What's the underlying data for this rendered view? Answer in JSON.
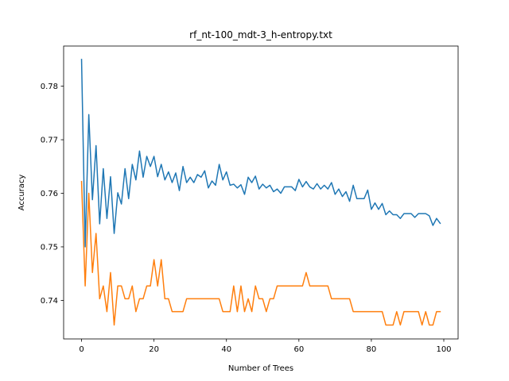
{
  "chart_data": {
    "type": "line",
    "title": "rf_nt-100_mdt-3_h-entropy.txt",
    "xlabel": "Number of Trees",
    "ylabel": "Accuracy",
    "xlim": [
      -4.95,
      103.95
    ],
    "ylim": [
      0.7328,
      0.7875
    ],
    "xticks": [
      0,
      20,
      40,
      60,
      80,
      100
    ],
    "yticks": [
      0.74,
      0.75,
      0.76,
      0.77,
      0.78
    ],
    "ytick_labels": [
      "0.74",
      "0.75",
      "0.76",
      "0.77",
      "0.78"
    ],
    "grid": false,
    "series": [
      {
        "color": "#1f77b4",
        "x": [
          0,
          1,
          2,
          3,
          4,
          5,
          6,
          7,
          8,
          9,
          10,
          11,
          12,
          13,
          14,
          15,
          16,
          17,
          18,
          19,
          20,
          21,
          22,
          23,
          24,
          25,
          26,
          27,
          28,
          29,
          30,
          31,
          32,
          33,
          34,
          35,
          36,
          37,
          38,
          39,
          40,
          41,
          42,
          43,
          44,
          45,
          46,
          47,
          48,
          49,
          50,
          51,
          52,
          53,
          54,
          55,
          56,
          57,
          58,
          59,
          60,
          61,
          62,
          63,
          64,
          65,
          66,
          67,
          68,
          69,
          70,
          71,
          72,
          73,
          74,
          75,
          76,
          77,
          78,
          79,
          80,
          81,
          82,
          83,
          84,
          85,
          86,
          87,
          88,
          89,
          90,
          91,
          92,
          93,
          94,
          95,
          96,
          97,
          98,
          99
        ],
        "values": [
          0.785,
          0.75,
          0.7747,
          0.7588,
          0.7689,
          0.7543,
          0.7646,
          0.7553,
          0.7631,
          0.7525,
          0.7601,
          0.758,
          0.7646,
          0.759,
          0.7654,
          0.7625,
          0.7679,
          0.763,
          0.7669,
          0.765,
          0.7669,
          0.7631,
          0.7654,
          0.7625,
          0.764,
          0.762,
          0.7638,
          0.7605,
          0.765,
          0.762,
          0.763,
          0.762,
          0.7635,
          0.763,
          0.7642,
          0.761,
          0.7623,
          0.7615,
          0.7654,
          0.7625,
          0.764,
          0.7615,
          0.7617,
          0.761,
          0.7616,
          0.7598,
          0.763,
          0.762,
          0.7632,
          0.7608,
          0.7617,
          0.761,
          0.7615,
          0.7603,
          0.7608,
          0.76,
          0.7612,
          0.7612,
          0.7612,
          0.7605,
          0.7626,
          0.7612,
          0.7622,
          0.7612,
          0.7608,
          0.7618,
          0.7608,
          0.7615,
          0.7608,
          0.762,
          0.7598,
          0.7608,
          0.7594,
          0.7603,
          0.7585,
          0.7615,
          0.759,
          0.759,
          0.759,
          0.7606,
          0.757,
          0.7582,
          0.757,
          0.7581,
          0.756,
          0.7567,
          0.756,
          0.756,
          0.7553,
          0.7562,
          0.7562,
          0.7562,
          0.7555,
          0.7562,
          0.7562,
          0.7562,
          0.7558,
          0.754,
          0.7553,
          0.7544
        ]
      },
      {
        "color": "#ff7f0e",
        "x": [
          0,
          1,
          2,
          3,
          4,
          5,
          6,
          7,
          8,
          9,
          10,
          11,
          12,
          13,
          14,
          15,
          16,
          17,
          18,
          19,
          20,
          21,
          22,
          23,
          24,
          25,
          26,
          27,
          28,
          29,
          30,
          31,
          32,
          33,
          34,
          35,
          36,
          37,
          38,
          39,
          40,
          41,
          42,
          43,
          44,
          45,
          46,
          47,
          48,
          49,
          50,
          51,
          52,
          53,
          54,
          55,
          56,
          57,
          58,
          59,
          60,
          61,
          62,
          63,
          64,
          65,
          66,
          67,
          68,
          69,
          70,
          71,
          72,
          73,
          74,
          75,
          76,
          77,
          78,
          79,
          80,
          81,
          82,
          83,
          84,
          85,
          86,
          87,
          88,
          89,
          90,
          91,
          92,
          93,
          94,
          95,
          96,
          97,
          98,
          99
        ],
        "values": [
          0.7622,
          0.7427,
          0.76,
          0.7452,
          0.7525,
          0.7403,
          0.7427,
          0.7379,
          0.7452,
          0.7354,
          0.7427,
          0.7427,
          0.7403,
          0.7403,
          0.7427,
          0.7379,
          0.7403,
          0.7403,
          0.7427,
          0.7427,
          0.7476,
          0.7427,
          0.7476,
          0.7403,
          0.7403,
          0.7379,
          0.7379,
          0.7379,
          0.7379,
          0.7403,
          0.7403,
          0.7403,
          0.7403,
          0.7403,
          0.7403,
          0.7403,
          0.7403,
          0.7403,
          0.7403,
          0.7379,
          0.7379,
          0.7379,
          0.7427,
          0.7379,
          0.7427,
          0.7379,
          0.7403,
          0.7379,
          0.7427,
          0.7403,
          0.7403,
          0.7379,
          0.7403,
          0.7403,
          0.7427,
          0.7427,
          0.7427,
          0.7427,
          0.7427,
          0.7427,
          0.7427,
          0.7427,
          0.7452,
          0.7427,
          0.7427,
          0.7427,
          0.7427,
          0.7427,
          0.7427,
          0.7403,
          0.7403,
          0.7403,
          0.7403,
          0.7403,
          0.7403,
          0.7379,
          0.7379,
          0.7379,
          0.7379,
          0.7379,
          0.7379,
          0.7379,
          0.7379,
          0.7379,
          0.7354,
          0.7354,
          0.7354,
          0.7379,
          0.7354,
          0.7379,
          0.7379,
          0.7379,
          0.7379,
          0.7379,
          0.7354,
          0.7379,
          0.7354,
          0.7354,
          0.7379,
          0.7379
        ]
      }
    ]
  }
}
